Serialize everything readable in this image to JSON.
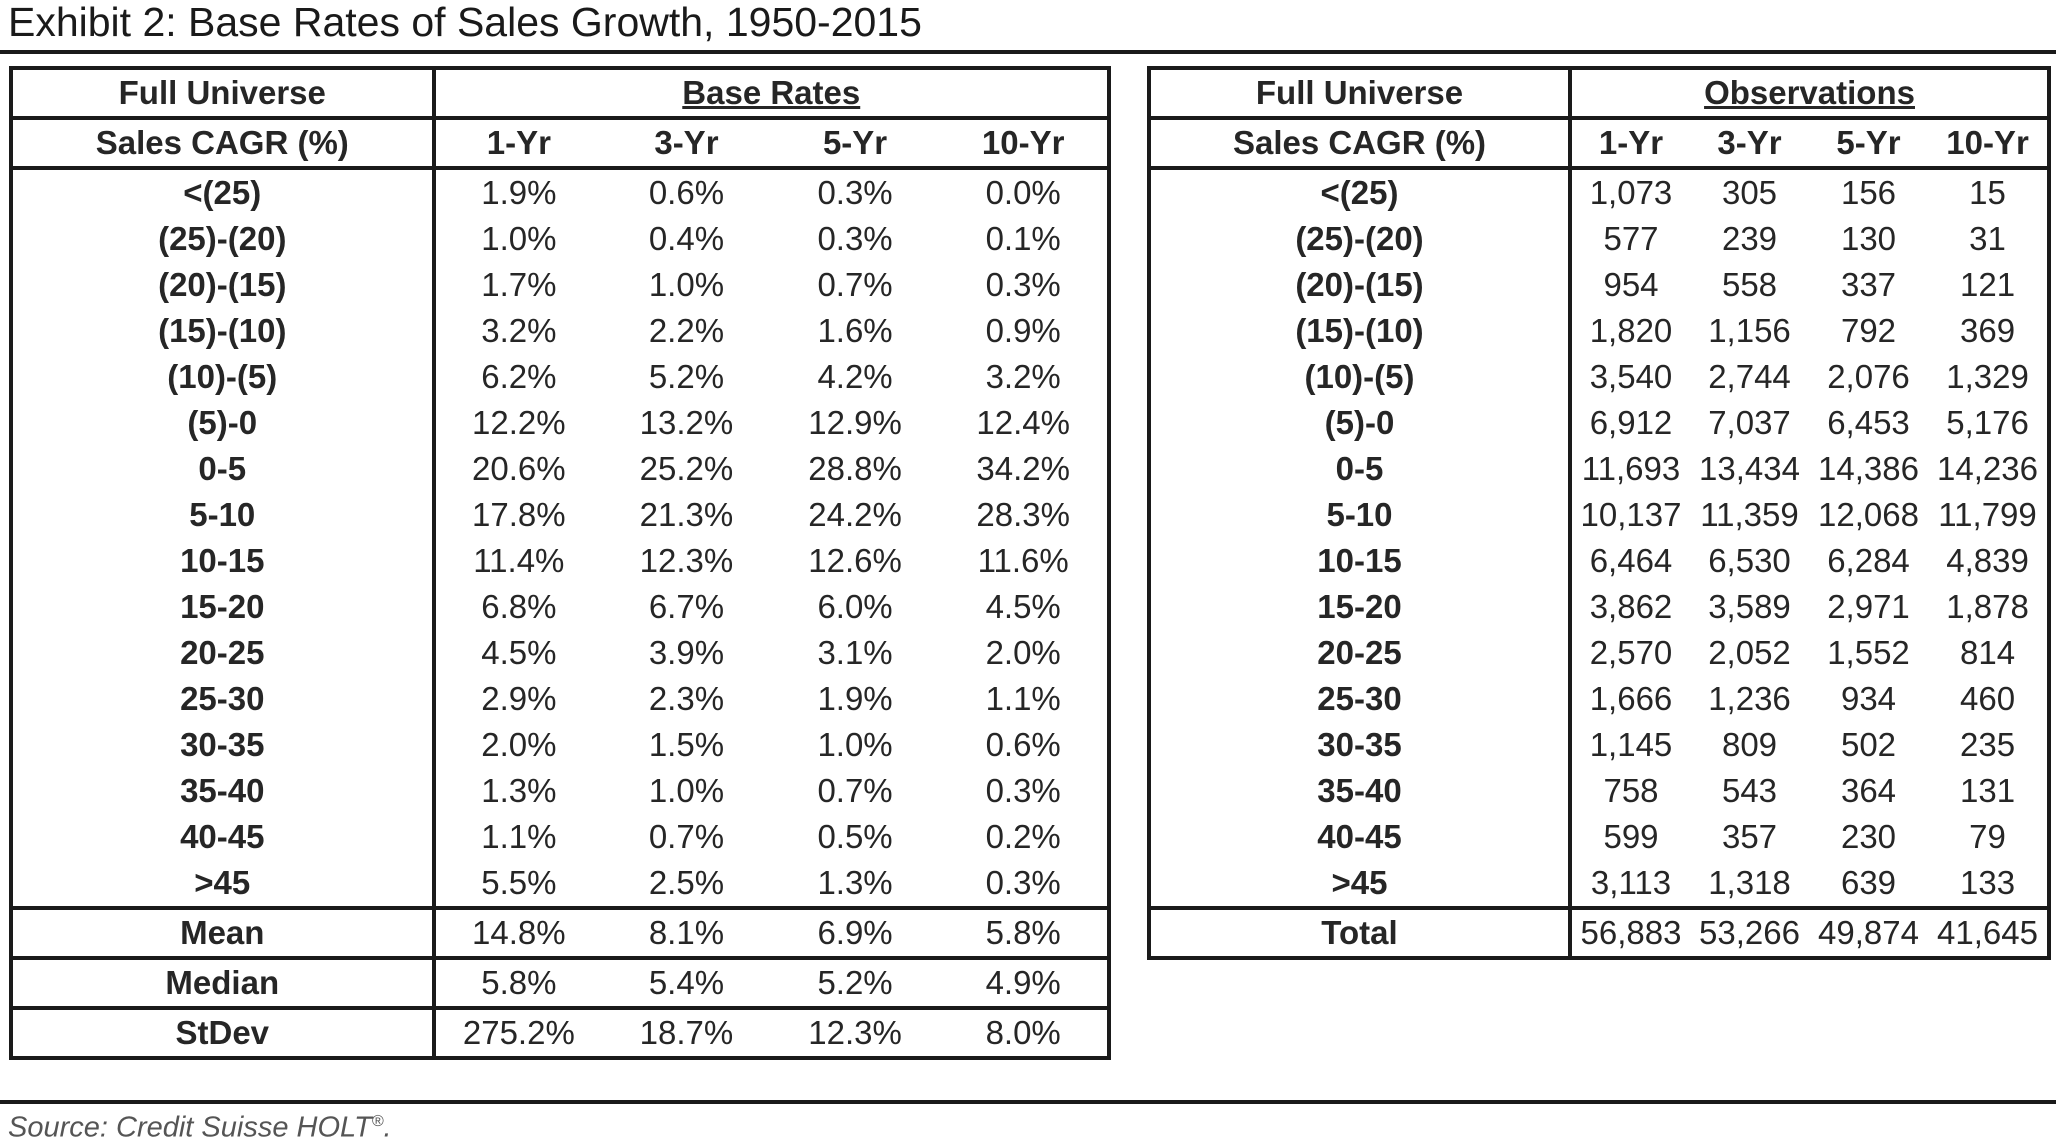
{
  "title": "Exhibit 2: Base Rates of Sales Growth, 1950-2015",
  "source": "Source: Credit Suisse HOLT",
  "source_mark": "®",
  "source_end": ".",
  "left_table": {
    "header1": "Full Universe",
    "group": "Base Rates",
    "header2": "Sales CAGR (%)",
    "periods": [
      "1-Yr",
      "3-Yr",
      "5-Yr",
      "10-Yr"
    ],
    "rows": [
      {
        "label": "<(25)",
        "values": [
          "1.9%",
          "0.6%",
          "0.3%",
          "0.0%"
        ]
      },
      {
        "label": "(25)-(20)",
        "values": [
          "1.0%",
          "0.4%",
          "0.3%",
          "0.1%"
        ]
      },
      {
        "label": "(20)-(15)",
        "values": [
          "1.7%",
          "1.0%",
          "0.7%",
          "0.3%"
        ]
      },
      {
        "label": "(15)-(10)",
        "values": [
          "3.2%",
          "2.2%",
          "1.6%",
          "0.9%"
        ]
      },
      {
        "label": "(10)-(5)",
        "values": [
          "6.2%",
          "5.2%",
          "4.2%",
          "3.2%"
        ]
      },
      {
        "label": "(5)-0",
        "values": [
          "12.2%",
          "13.2%",
          "12.9%",
          "12.4%"
        ]
      },
      {
        "label": "0-5",
        "values": [
          "20.6%",
          "25.2%",
          "28.8%",
          "34.2%"
        ]
      },
      {
        "label": "5-10",
        "values": [
          "17.8%",
          "21.3%",
          "24.2%",
          "28.3%"
        ]
      },
      {
        "label": "10-15",
        "values": [
          "11.4%",
          "12.3%",
          "12.6%",
          "11.6%"
        ]
      },
      {
        "label": "15-20",
        "values": [
          "6.8%",
          "6.7%",
          "6.0%",
          "4.5%"
        ]
      },
      {
        "label": "20-25",
        "values": [
          "4.5%",
          "3.9%",
          "3.1%",
          "2.0%"
        ]
      },
      {
        "label": "25-30",
        "values": [
          "2.9%",
          "2.3%",
          "1.9%",
          "1.1%"
        ]
      },
      {
        "label": "30-35",
        "values": [
          "2.0%",
          "1.5%",
          "1.0%",
          "0.6%"
        ]
      },
      {
        "label": "35-40",
        "values": [
          "1.3%",
          "1.0%",
          "0.7%",
          "0.3%"
        ]
      },
      {
        "label": "40-45",
        "values": [
          "1.1%",
          "0.7%",
          "0.5%",
          "0.2%"
        ]
      },
      {
        "label": ">45",
        "values": [
          "5.5%",
          "2.5%",
          "1.3%",
          "0.3%"
        ]
      }
    ],
    "summary": [
      {
        "label": "Mean",
        "values": [
          "14.8%",
          "8.1%",
          "6.9%",
          "5.8%"
        ]
      },
      {
        "label": "Median",
        "values": [
          "5.8%",
          "5.4%",
          "5.2%",
          "4.9%"
        ]
      },
      {
        "label": "StDev",
        "values": [
          "275.2%",
          "18.7%",
          "12.3%",
          "8.0%"
        ]
      }
    ]
  },
  "right_table": {
    "header1": "Full Universe",
    "group": "Observations",
    "header2": "Sales CAGR (%)",
    "periods": [
      "1-Yr",
      "3-Yr",
      "5-Yr",
      "10-Yr"
    ],
    "rows": [
      {
        "label": "<(25)",
        "values": [
          "1,073",
          "305",
          "156",
          "15"
        ]
      },
      {
        "label": "(25)-(20)",
        "values": [
          "577",
          "239",
          "130",
          "31"
        ]
      },
      {
        "label": "(20)-(15)",
        "values": [
          "954",
          "558",
          "337",
          "121"
        ]
      },
      {
        "label": "(15)-(10)",
        "values": [
          "1,820",
          "1,156",
          "792",
          "369"
        ]
      },
      {
        "label": "(10)-(5)",
        "values": [
          "3,540",
          "2,744",
          "2,076",
          "1,329"
        ]
      },
      {
        "label": "(5)-0",
        "values": [
          "6,912",
          "7,037",
          "6,453",
          "5,176"
        ]
      },
      {
        "label": "0-5",
        "values": [
          "11,693",
          "13,434",
          "14,386",
          "14,236"
        ]
      },
      {
        "label": "5-10",
        "values": [
          "10,137",
          "11,359",
          "12,068",
          "11,799"
        ]
      },
      {
        "label": "10-15",
        "values": [
          "6,464",
          "6,530",
          "6,284",
          "4,839"
        ]
      },
      {
        "label": "15-20",
        "values": [
          "3,862",
          "3,589",
          "2,971",
          "1,878"
        ]
      },
      {
        "label": "20-25",
        "values": [
          "2,570",
          "2,052",
          "1,552",
          "814"
        ]
      },
      {
        "label": "25-30",
        "values": [
          "1,666",
          "1,236",
          "934",
          "460"
        ]
      },
      {
        "label": "30-35",
        "values": [
          "1,145",
          "809",
          "502",
          "235"
        ]
      },
      {
        "label": "35-40",
        "values": [
          "758",
          "543",
          "364",
          "131"
        ]
      },
      {
        "label": "40-45",
        "values": [
          "599",
          "357",
          "230",
          "79"
        ]
      },
      {
        "label": ">45",
        "values": [
          "3,113",
          "1,318",
          "639",
          "133"
        ]
      }
    ],
    "summary": [
      {
        "label": "Total",
        "values": [
          "56,883",
          "53,266",
          "49,874",
          "41,645"
        ]
      }
    ]
  }
}
